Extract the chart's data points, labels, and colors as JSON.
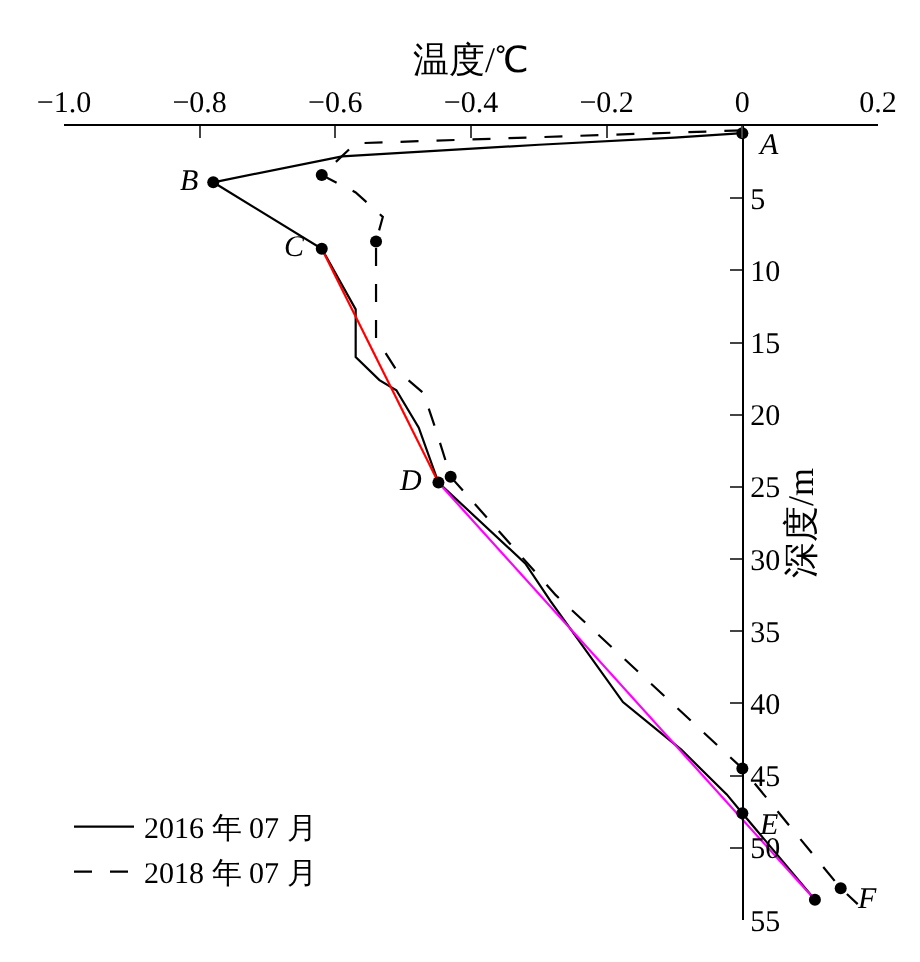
{
  "chart_data": {
    "type": "line",
    "xlabel": "温度/℃",
    "ylabel": "深度/m",
    "xlim": [
      -1.0,
      0.2
    ],
    "xticks": [
      {
        "value": -1.0,
        "label": "−1.0"
      },
      {
        "value": -0.8,
        "label": "−0.8"
      },
      {
        "value": -0.6,
        "label": "−0.6"
      },
      {
        "value": -0.4,
        "label": "−0.4"
      },
      {
        "value": -0.2,
        "label": "−0.2"
      },
      0,
      0.2
    ],
    "ylim": [
      55,
      0
    ],
    "yticks": [
      5,
      10,
      15,
      20,
      25,
      30,
      35,
      40,
      45,
      50,
      55
    ],
    "legend": "bottom left",
    "series": [
      {
        "name": "2016 年 07 月",
        "color": "#000000",
        "line_style": "solid",
        "x": [
          0,
          -0.1,
          -0.3,
          -0.59,
          -0.78,
          -0.62,
          -0.57,
          -0.57,
          -0.535,
          -0.51,
          -0.477,
          -0.448,
          -0.32,
          -0.283,
          -0.176,
          -0.09,
          -0.023,
          0,
          0.107
        ],
        "values": [
          0.5,
          0.8,
          1.3,
          2.1,
          3.9,
          8.5,
          12.7,
          16,
          17.6,
          18.3,
          20.9,
          24.7,
          30.3,
          32.9,
          39.9,
          43.2,
          46.3,
          47.6,
          53.6
        ]
      },
      {
        "name": "2018 年 07 月",
        "color": "#000000",
        "line_style": "dashed",
        "x": [
          0,
          -0.57,
          -0.62,
          -0.57,
          -0.53,
          -0.54,
          -0.54,
          -0.51,
          -0.47,
          -0.45,
          -0.43,
          -0.275,
          0,
          0.145,
          0.17
        ],
        "values": [
          0.3,
          1.2,
          3.4,
          4.6,
          6.3,
          8,
          14.7,
          16.9,
          18.5,
          21.3,
          24.3,
          32.5,
          44.5,
          52.8,
          53.9
        ]
      },
      {
        "color": "#ff0000",
        "line_style": "solid",
        "x": [
          -0.62,
          -0.448
        ],
        "values": [
          8.5,
          24.7
        ]
      },
      {
        "color": "#ff00ff",
        "line_style": "solid",
        "x": [
          -0.448,
          0.107
        ],
        "values": [
          24.7,
          53.6
        ]
      },
      {
        "type": "scatter",
        "marker": "circle",
        "color": "#000000",
        "x": [
          0,
          -0.78,
          -0.62,
          -0.448,
          0,
          0.107
        ],
        "values": [
          0.5,
          3.9,
          8.5,
          24.7,
          47.6,
          53.6
        ]
      },
      {
        "type": "scatter",
        "marker": "circle",
        "color": "#000000",
        "x": [
          -0.62,
          -0.54,
          -0.43,
          0,
          0.145
        ],
        "values": [
          3.4,
          8,
          24.3,
          44.5,
          52.8
        ]
      }
    ],
    "annotations": [
      {
        "text": "A",
        "x": 0,
        "y": 0.5
      },
      {
        "text": "B",
        "x": -0.78,
        "y": 3.9
      },
      {
        "text": "C",
        "x": -0.62,
        "y": 8.5
      },
      {
        "text": "D",
        "x": -0.448,
        "y": 24.7
      },
      {
        "text": "E",
        "x": 0,
        "y": 47.6
      },
      {
        "text": "F",
        "x": 0.145,
        "y": 52.8
      }
    ]
  }
}
